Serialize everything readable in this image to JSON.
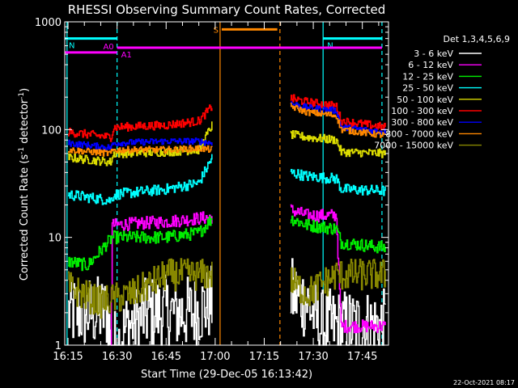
{
  "chart_data": {
    "type": "line",
    "title": "RHESSI Observing Summary Count Rates, Corrected",
    "xlabel": "Start Time (29-Dec-05 16:13:42)",
    "ylabel": "Corrected Count Rate (s⁻¹ detector⁻¹)",
    "ylabel_parts": {
      "main": "Corrected Count Rate (s",
      "sup1": "-1",
      "mid": " detector",
      "sup2": "-1",
      "end": ")"
    },
    "yscale": "log",
    "ylim": [
      1,
      1000
    ],
    "xlim_minutes": [
      -1,
      98
    ],
    "x_ticks": [
      {
        "label": "16:15",
        "t": 0
      },
      {
        "label": "16:30",
        "t": 15
      },
      {
        "label": "16:45",
        "t": 30
      },
      {
        "label": "17:00",
        "t": 45
      },
      {
        "label": "17:15",
        "t": 60
      },
      {
        "label": "17:30",
        "t": 75
      },
      {
        "label": "17:45",
        "t": 90
      }
    ],
    "y_ticks": [
      {
        "label": "1",
        "v": 1
      },
      {
        "label": "10",
        "v": 10
      },
      {
        "label": "100",
        "v": 100
      },
      {
        "label": "1000",
        "v": 1000
      }
    ],
    "legend_title": "Det 1,3,4,5,6,9",
    "gap": [
      45,
      68
    ],
    "series": [
      {
        "name": "3 - 6 keV",
        "color": "#ffffff",
        "noise": 0.35,
        "pre": [
          [
            0,
            2
          ],
          [
            12,
            2
          ],
          [
            13,
            1
          ],
          [
            15,
            1
          ],
          [
            18,
            1.5
          ],
          [
            25,
            2
          ],
          [
            38,
            2
          ],
          [
            44,
            2.5
          ]
        ],
        "post": [
          [
            68,
            3
          ],
          [
            73,
            2.5
          ],
          [
            77,
            1.5
          ],
          [
            82,
            1.5
          ],
          [
            85,
            1.5
          ],
          [
            97,
            1.5
          ]
        ]
      },
      {
        "name": "6 - 12 keV",
        "color": "#ff00ff",
        "noise": 0.06,
        "pre": [
          [
            13,
            1
          ],
          [
            13.5,
            13
          ],
          [
            30,
            14
          ],
          [
            40,
            15
          ],
          [
            44,
            15.5
          ]
        ],
        "post": [
          [
            68,
            18
          ],
          [
            73,
            16
          ],
          [
            82,
            16
          ],
          [
            83.5,
            1.5
          ],
          [
            97,
            1.5
          ]
        ]
      },
      {
        "name": "12 - 25 keV",
        "color": "#00ee00",
        "noise": 0.06,
        "pre": [
          [
            0,
            6
          ],
          [
            6,
            5.5
          ],
          [
            13.5,
            10
          ],
          [
            30,
            10
          ],
          [
            40,
            11
          ],
          [
            44,
            15
          ]
        ],
        "post": [
          [
            68,
            15
          ],
          [
            73,
            13
          ],
          [
            82,
            12
          ],
          [
            83.5,
            9
          ],
          [
            97,
            8
          ]
        ]
      },
      {
        "name": "25 - 50 keV",
        "color": "#00ffff",
        "noise": 0.05,
        "pre": [
          [
            0,
            25
          ],
          [
            13,
            22
          ],
          [
            14,
            25
          ],
          [
            30,
            28
          ],
          [
            40,
            32
          ],
          [
            44,
            55
          ]
        ],
        "post": [
          [
            68,
            40
          ],
          [
            73,
            37
          ],
          [
            82,
            35
          ],
          [
            83.5,
            28
          ],
          [
            97,
            27
          ]
        ]
      },
      {
        "name": "50 - 100 keV",
        "color": "#dddd00",
        "noise": 0.04,
        "pre": [
          [
            0,
            55
          ],
          [
            13,
            50
          ],
          [
            14,
            60
          ],
          [
            30,
            62
          ],
          [
            40,
            65
          ],
          [
            44,
            110
          ]
        ],
        "post": [
          [
            68,
            90
          ],
          [
            73,
            85
          ],
          [
            82,
            80
          ],
          [
            83.5,
            62
          ],
          [
            97,
            60
          ]
        ]
      },
      {
        "name": "100 - 300 keV",
        "color": "#ff0000",
        "noise": 0.04,
        "pre": [
          [
            0,
            95
          ],
          [
            13,
            85
          ],
          [
            14,
            105
          ],
          [
            30,
            110
          ],
          [
            40,
            120
          ],
          [
            44,
            165
          ]
        ],
        "post": [
          [
            68,
            195
          ],
          [
            73,
            180
          ],
          [
            82,
            165
          ],
          [
            83.5,
            120
          ],
          [
            97,
            105
          ]
        ]
      },
      {
        "name": "300 - 800 keV",
        "color": "#0000ff",
        "noise": 0.03,
        "pre": [
          [
            0,
            75
          ],
          [
            13,
            68
          ],
          [
            14,
            75
          ],
          [
            30,
            78
          ],
          [
            40,
            78
          ],
          [
            44,
            75
          ]
        ],
        "post": [
          [
            68,
            175
          ],
          [
            73,
            160
          ],
          [
            82,
            150
          ],
          [
            83.5,
            105
          ],
          [
            97,
            95
          ]
        ]
      },
      {
        "name": "800 - 7000 keV",
        "color": "#ff8800",
        "noise": 0.03,
        "pre": [
          [
            0,
            65
          ],
          [
            13,
            60
          ],
          [
            14,
            65
          ],
          [
            30,
            65
          ],
          [
            40,
            67
          ],
          [
            44,
            65
          ]
        ],
        "post": [
          [
            68,
            165
          ],
          [
            73,
            145
          ],
          [
            82,
            135
          ],
          [
            83.5,
            100
          ],
          [
            97,
            88
          ]
        ]
      },
      {
        "name": "7000 - 15000 keV",
        "color": "#888800",
        "noise": 0.15,
        "pre": [
          [
            0,
            3.5
          ],
          [
            4,
            3
          ],
          [
            10,
            2.5
          ],
          [
            20,
            3
          ],
          [
            30,
            4.5
          ],
          [
            44,
            4.5
          ]
        ],
        "post": [
          [
            68,
            4
          ],
          [
            73,
            3
          ],
          [
            82,
            4.5
          ],
          [
            97,
            4.5
          ]
        ]
      }
    ],
    "annotations": [
      {
        "label": "N",
        "color": "#00ffff",
        "t0": -1,
        "t1": 15,
        "v": 700
      },
      {
        "label": "N",
        "color": "#00ffff",
        "t0": 78,
        "t1": 96,
        "v": 700
      },
      {
        "label": "A0",
        "color": "#ff00ff",
        "t0": -1,
        "t1": 15,
        "v": 520
      },
      {
        "label": "A1",
        "color": "#ff00ff",
        "t0": 15,
        "t1": 96,
        "v": 575
      },
      {
        "label": "S",
        "color": "#ff8800",
        "t0": 47,
        "t1": 64,
        "v": 850
      }
    ],
    "vlines": [
      {
        "t": -0.3,
        "color": "#00ffff",
        "dashed": false
      },
      {
        "t": 15,
        "color": "#00ffff",
        "dashed": true
      },
      {
        "t": 46.5,
        "color": "#ff8800",
        "dashed": false
      },
      {
        "t": 64.8,
        "color": "#ff8800",
        "dashed": true
      },
      {
        "t": 78,
        "color": "#00ffff",
        "dashed": false
      },
      {
        "t": 96,
        "color": "#00ffff",
        "dashed": true
      }
    ]
  },
  "footer_date": "22-Oct-2021 08:17"
}
